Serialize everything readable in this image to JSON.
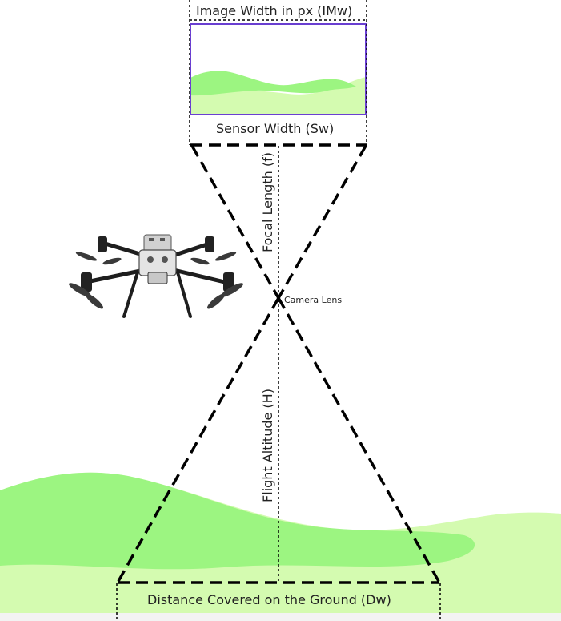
{
  "labels": {
    "image_width": "Image Width in px (IMw)",
    "sensor_width": "Sensor Width (Sw)",
    "focal_length": "Focal Length (f)",
    "camera_lens": "Camera Lens",
    "flight_altitude": "Flight Altitude (H)",
    "ground_distance": "Distance Covered on the Ground (Dw)"
  },
  "colors": {
    "ground_light": "#d4fbb0",
    "ground_bright": "#9cf581",
    "image_frame": "#6a3fd1",
    "line": "#000000"
  },
  "icons": {
    "drone": "drone-icon"
  }
}
